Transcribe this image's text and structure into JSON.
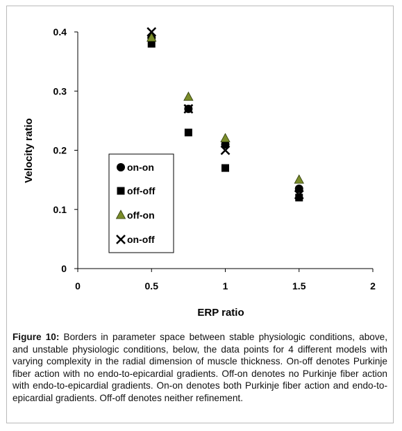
{
  "chart_data": {
    "type": "scatter",
    "xlabel": "ERP ratio",
    "ylabel": "Velocity ratio",
    "xlim": [
      0,
      2
    ],
    "ylim": [
      0,
      0.4
    ],
    "xticks": [
      "0",
      "0.5",
      "1",
      "1.5",
      "2"
    ],
    "yticks": [
      "0",
      "0.1",
      "0.2",
      "0.3",
      "0.4"
    ],
    "grid": false,
    "legend_position": "left-center",
    "series": [
      {
        "name": "on-on",
        "marker": "circle",
        "color": "#000000",
        "points": [
          [
            0.5,
            0.39
          ],
          [
            0.75,
            0.27
          ],
          [
            1.0,
            0.21
          ],
          [
            1.5,
            0.135
          ]
        ]
      },
      {
        "name": "off-off",
        "marker": "square",
        "color": "#000000",
        "points": [
          [
            0.5,
            0.38
          ],
          [
            0.75,
            0.23
          ],
          [
            1.0,
            0.17
          ],
          [
            1.5,
            0.12
          ]
        ]
      },
      {
        "name": "off-on",
        "marker": "triangle",
        "color": "#7a8c2a",
        "points": [
          [
            0.5,
            0.39
          ],
          [
            0.75,
            0.29
          ],
          [
            1.0,
            0.22
          ],
          [
            1.5,
            0.15
          ]
        ]
      },
      {
        "name": "on-off",
        "marker": "x",
        "color": "#000000",
        "points": [
          [
            0.5,
            0.4
          ],
          [
            0.75,
            0.27
          ],
          [
            1.0,
            0.2
          ],
          [
            1.5,
            0.125
          ]
        ]
      }
    ]
  },
  "caption": {
    "label": "Figure 10:",
    "text": " Borders in parameter space between stable physiologic conditions, above, and unstable physiologic conditions, below, the data points for 4 different models with varying complexity in the radial dimension of muscle thickness. On-off denotes Purkinje fiber action with no endo-to-epicardial gradients. Off-on denotes no Purkinje fiber action with endo-to-epicardial gradients. On-on denotes both Purkinje fiber action and endo-to-epicardial gradients. Off-off denotes neither refinement."
  }
}
